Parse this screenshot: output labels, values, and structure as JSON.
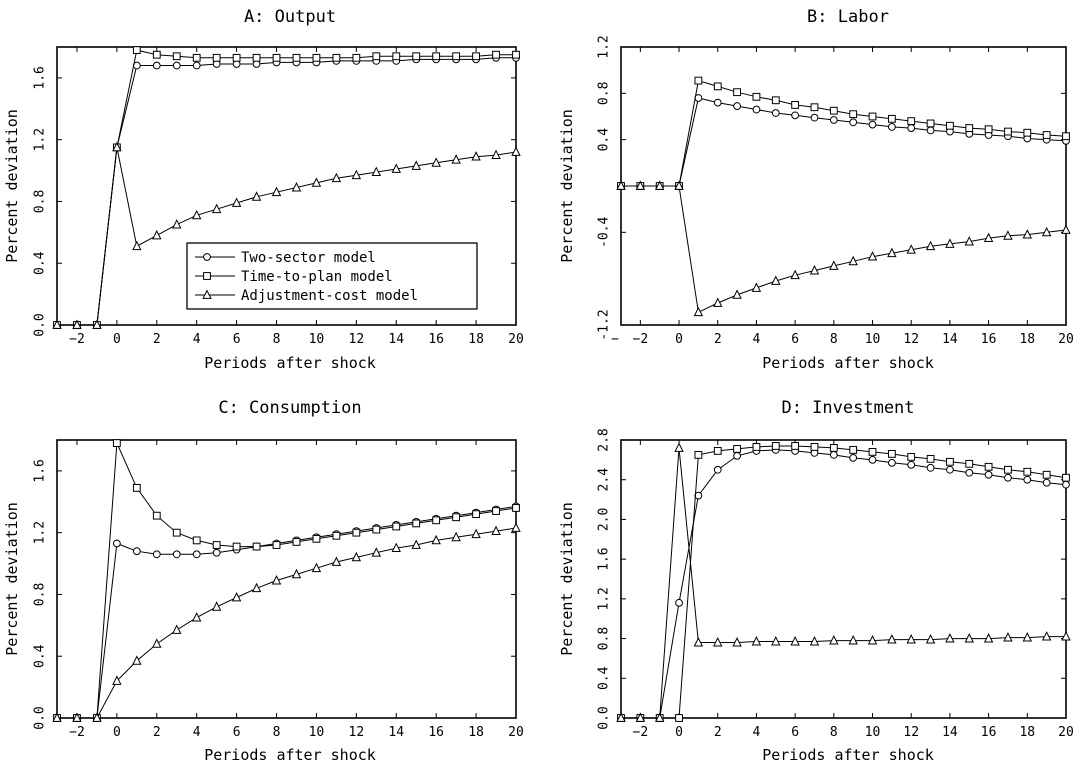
{
  "chart_data": [
    {
      "type": "line",
      "title": "A:  Output",
      "xlabel": "Periods after shock",
      "ylabel": "Percent deviation",
      "xlim": [
        -3,
        20
      ],
      "ylim": [
        0,
        1.8
      ],
      "xticks": [
        -2,
        0,
        2,
        4,
        6,
        8,
        10,
        12,
        14,
        16,
        18,
        20
      ],
      "yticks": [
        0.0,
        0.4,
        0.8,
        1.2,
        1.6
      ],
      "ytick_labels": [
        "0.0",
        "0.4",
        "0.8",
        "1.2",
        "1.6"
      ],
      "legend": {
        "position": "lower-center",
        "entries": [
          "Two-sector model",
          "Time-to-plan model",
          "Adjustment-cost model"
        ]
      },
      "x": [
        -3,
        -2,
        -1,
        0,
        1,
        2,
        3,
        4,
        5,
        6,
        7,
        8,
        9,
        10,
        11,
        12,
        13,
        14,
        15,
        16,
        17,
        18,
        19,
        20
      ],
      "series": [
        {
          "name": "Two-sector model",
          "marker": "circle",
          "values": [
            0,
            0,
            0,
            1.15,
            1.68,
            1.68,
            1.68,
            1.68,
            1.69,
            1.69,
            1.69,
            1.7,
            1.7,
            1.7,
            1.71,
            1.71,
            1.71,
            1.71,
            1.72,
            1.72,
            1.72,
            1.72,
            1.73,
            1.73
          ]
        },
        {
          "name": "Time-to-plan model",
          "marker": "square",
          "values": [
            0,
            0,
            0,
            1.15,
            1.78,
            1.75,
            1.74,
            1.73,
            1.73,
            1.73,
            1.73,
            1.73,
            1.73,
            1.73,
            1.73,
            1.73,
            1.74,
            1.74,
            1.74,
            1.74,
            1.74,
            1.74,
            1.75,
            1.75
          ]
        },
        {
          "name": "Adjustment-cost model",
          "marker": "triangle",
          "values": [
            0,
            0,
            0,
            1.15,
            0.51,
            0.58,
            0.65,
            0.71,
            0.75,
            0.79,
            0.83,
            0.86,
            0.89,
            0.92,
            0.95,
            0.97,
            0.99,
            1.01,
            1.03,
            1.05,
            1.07,
            1.09,
            1.1,
            1.12
          ]
        }
      ]
    },
    {
      "type": "line",
      "title": "B:  Labor",
      "xlabel": "Periods after shock",
      "ylabel": "Percent deviation",
      "xlim": [
        -3,
        20
      ],
      "ylim": [
        -1.2,
        1.2
      ],
      "xticks": [
        -2,
        0,
        2,
        4,
        6,
        8,
        10,
        12,
        14,
        16,
        18,
        20
      ],
      "xtick_extra_left": "−",
      "yticks": [
        -1.2,
        -0.4,
        0.4,
        0.8,
        1.2
      ],
      "ytick_labels": [
        "-1.2",
        "-0.4",
        "0.4",
        "0.8",
        "1.2"
      ],
      "x": [
        -3,
        -2,
        -1,
        0,
        1,
        2,
        3,
        4,
        5,
        6,
        7,
        8,
        9,
        10,
        11,
        12,
        13,
        14,
        15,
        16,
        17,
        18,
        19,
        20
      ],
      "series": [
        {
          "name": "Two-sector model",
          "marker": "circle",
          "values": [
            0,
            0,
            0,
            0,
            0.76,
            0.72,
            0.69,
            0.66,
            0.63,
            0.61,
            0.59,
            0.57,
            0.55,
            0.53,
            0.51,
            0.5,
            0.48,
            0.47,
            0.45,
            0.44,
            0.43,
            0.41,
            0.4,
            0.39
          ]
        },
        {
          "name": "Time-to-plan model",
          "marker": "square",
          "values": [
            0,
            0,
            0,
            0,
            0.91,
            0.86,
            0.81,
            0.77,
            0.74,
            0.7,
            0.68,
            0.65,
            0.62,
            0.6,
            0.58,
            0.56,
            0.54,
            0.52,
            0.5,
            0.49,
            0.47,
            0.46,
            0.44,
            0.43
          ]
        },
        {
          "name": "Adjustment-cost model",
          "marker": "triangle",
          "values": [
            0,
            0,
            0,
            0,
            -1.09,
            -1.01,
            -0.94,
            -0.88,
            -0.82,
            -0.77,
            -0.73,
            -0.69,
            -0.65,
            -0.61,
            -0.58,
            -0.55,
            -0.52,
            -0.5,
            -0.48,
            -0.45,
            -0.43,
            -0.42,
            -0.4,
            -0.38
          ]
        }
      ]
    },
    {
      "type": "line",
      "title": "C:  Consumption",
      "xlabel": "Periods after shock",
      "ylabel": "Percent deviation",
      "xlim": [
        -3,
        20
      ],
      "ylim": [
        0,
        1.8
      ],
      "xticks": [
        -2,
        0,
        2,
        4,
        6,
        8,
        10,
        12,
        14,
        16,
        18,
        20
      ],
      "yticks": [
        0.0,
        0.4,
        0.8,
        1.2,
        1.6
      ],
      "ytick_labels": [
        "0.0",
        "0.4",
        "0.8",
        "1.2",
        "1.6"
      ],
      "x": [
        -3,
        -2,
        -1,
        0,
        1,
        2,
        3,
        4,
        5,
        6,
        7,
        8,
        9,
        10,
        11,
        12,
        13,
        14,
        15,
        16,
        17,
        18,
        19,
        20
      ],
      "series": [
        {
          "name": "Two-sector model",
          "marker": "circle",
          "values": [
            0,
            0,
            0,
            1.13,
            1.08,
            1.06,
            1.06,
            1.06,
            1.07,
            1.09,
            1.11,
            1.13,
            1.15,
            1.17,
            1.19,
            1.21,
            1.23,
            1.25,
            1.27,
            1.29,
            1.31,
            1.33,
            1.35,
            1.37
          ]
        },
        {
          "name": "Time-to-plan model",
          "marker": "square",
          "values": [
            0,
            0,
            0,
            1.78,
            1.49,
            1.31,
            1.2,
            1.15,
            1.12,
            1.11,
            1.11,
            1.12,
            1.14,
            1.16,
            1.18,
            1.2,
            1.22,
            1.24,
            1.26,
            1.28,
            1.3,
            1.32,
            1.34,
            1.36
          ]
        },
        {
          "name": "Adjustment-cost model",
          "marker": "triangle",
          "values": [
            0,
            0,
            0,
            0.24,
            0.37,
            0.48,
            0.57,
            0.65,
            0.72,
            0.78,
            0.84,
            0.89,
            0.93,
            0.97,
            1.01,
            1.04,
            1.07,
            1.1,
            1.12,
            1.15,
            1.17,
            1.19,
            1.21,
            1.23
          ]
        }
      ]
    },
    {
      "type": "line",
      "title": "D:  Investment",
      "xlabel": "Periods after shock",
      "ylabel": "Percent deviation",
      "xlim": [
        -3,
        20
      ],
      "ylim": [
        0,
        2.8
      ],
      "xticks": [
        -2,
        0,
        2,
        4,
        6,
        8,
        10,
        12,
        14,
        16,
        18,
        20
      ],
      "yticks": [
        0.0,
        0.4,
        0.8,
        1.2,
        1.6,
        2.0,
        2.4,
        2.8
      ],
      "ytick_labels": [
        "0.0",
        "0.4",
        "0.8",
        "1.2",
        "1.6",
        "2.0",
        "2.4",
        "2.8"
      ],
      "x": [
        -3,
        -2,
        -1,
        0,
        1,
        2,
        3,
        4,
        5,
        6,
        7,
        8,
        9,
        10,
        11,
        12,
        13,
        14,
        15,
        16,
        17,
        18,
        19,
        20
      ],
      "series": [
        {
          "name": "Two-sector model",
          "marker": "circle",
          "values": [
            0,
            0,
            0,
            1.16,
            2.24,
            2.5,
            2.64,
            2.69,
            2.7,
            2.69,
            2.67,
            2.65,
            2.62,
            2.6,
            2.57,
            2.55,
            2.52,
            2.5,
            2.47,
            2.45,
            2.42,
            2.4,
            2.37,
            2.35
          ]
        },
        {
          "name": "Time-to-plan model",
          "marker": "square",
          "values": [
            0,
            0,
            0,
            0,
            2.65,
            2.69,
            2.71,
            2.73,
            2.74,
            2.74,
            2.73,
            2.72,
            2.7,
            2.68,
            2.66,
            2.63,
            2.61,
            2.58,
            2.56,
            2.53,
            2.5,
            2.48,
            2.45,
            2.42
          ]
        },
        {
          "name": "Adjustment-cost model",
          "marker": "triangle",
          "values": [
            0,
            0,
            0,
            2.72,
            0.76,
            0.76,
            0.76,
            0.77,
            0.77,
            0.77,
            0.77,
            0.78,
            0.78,
            0.78,
            0.79,
            0.79,
            0.79,
            0.8,
            0.8,
            0.8,
            0.81,
            0.81,
            0.82,
            0.82
          ]
        }
      ]
    }
  ]
}
